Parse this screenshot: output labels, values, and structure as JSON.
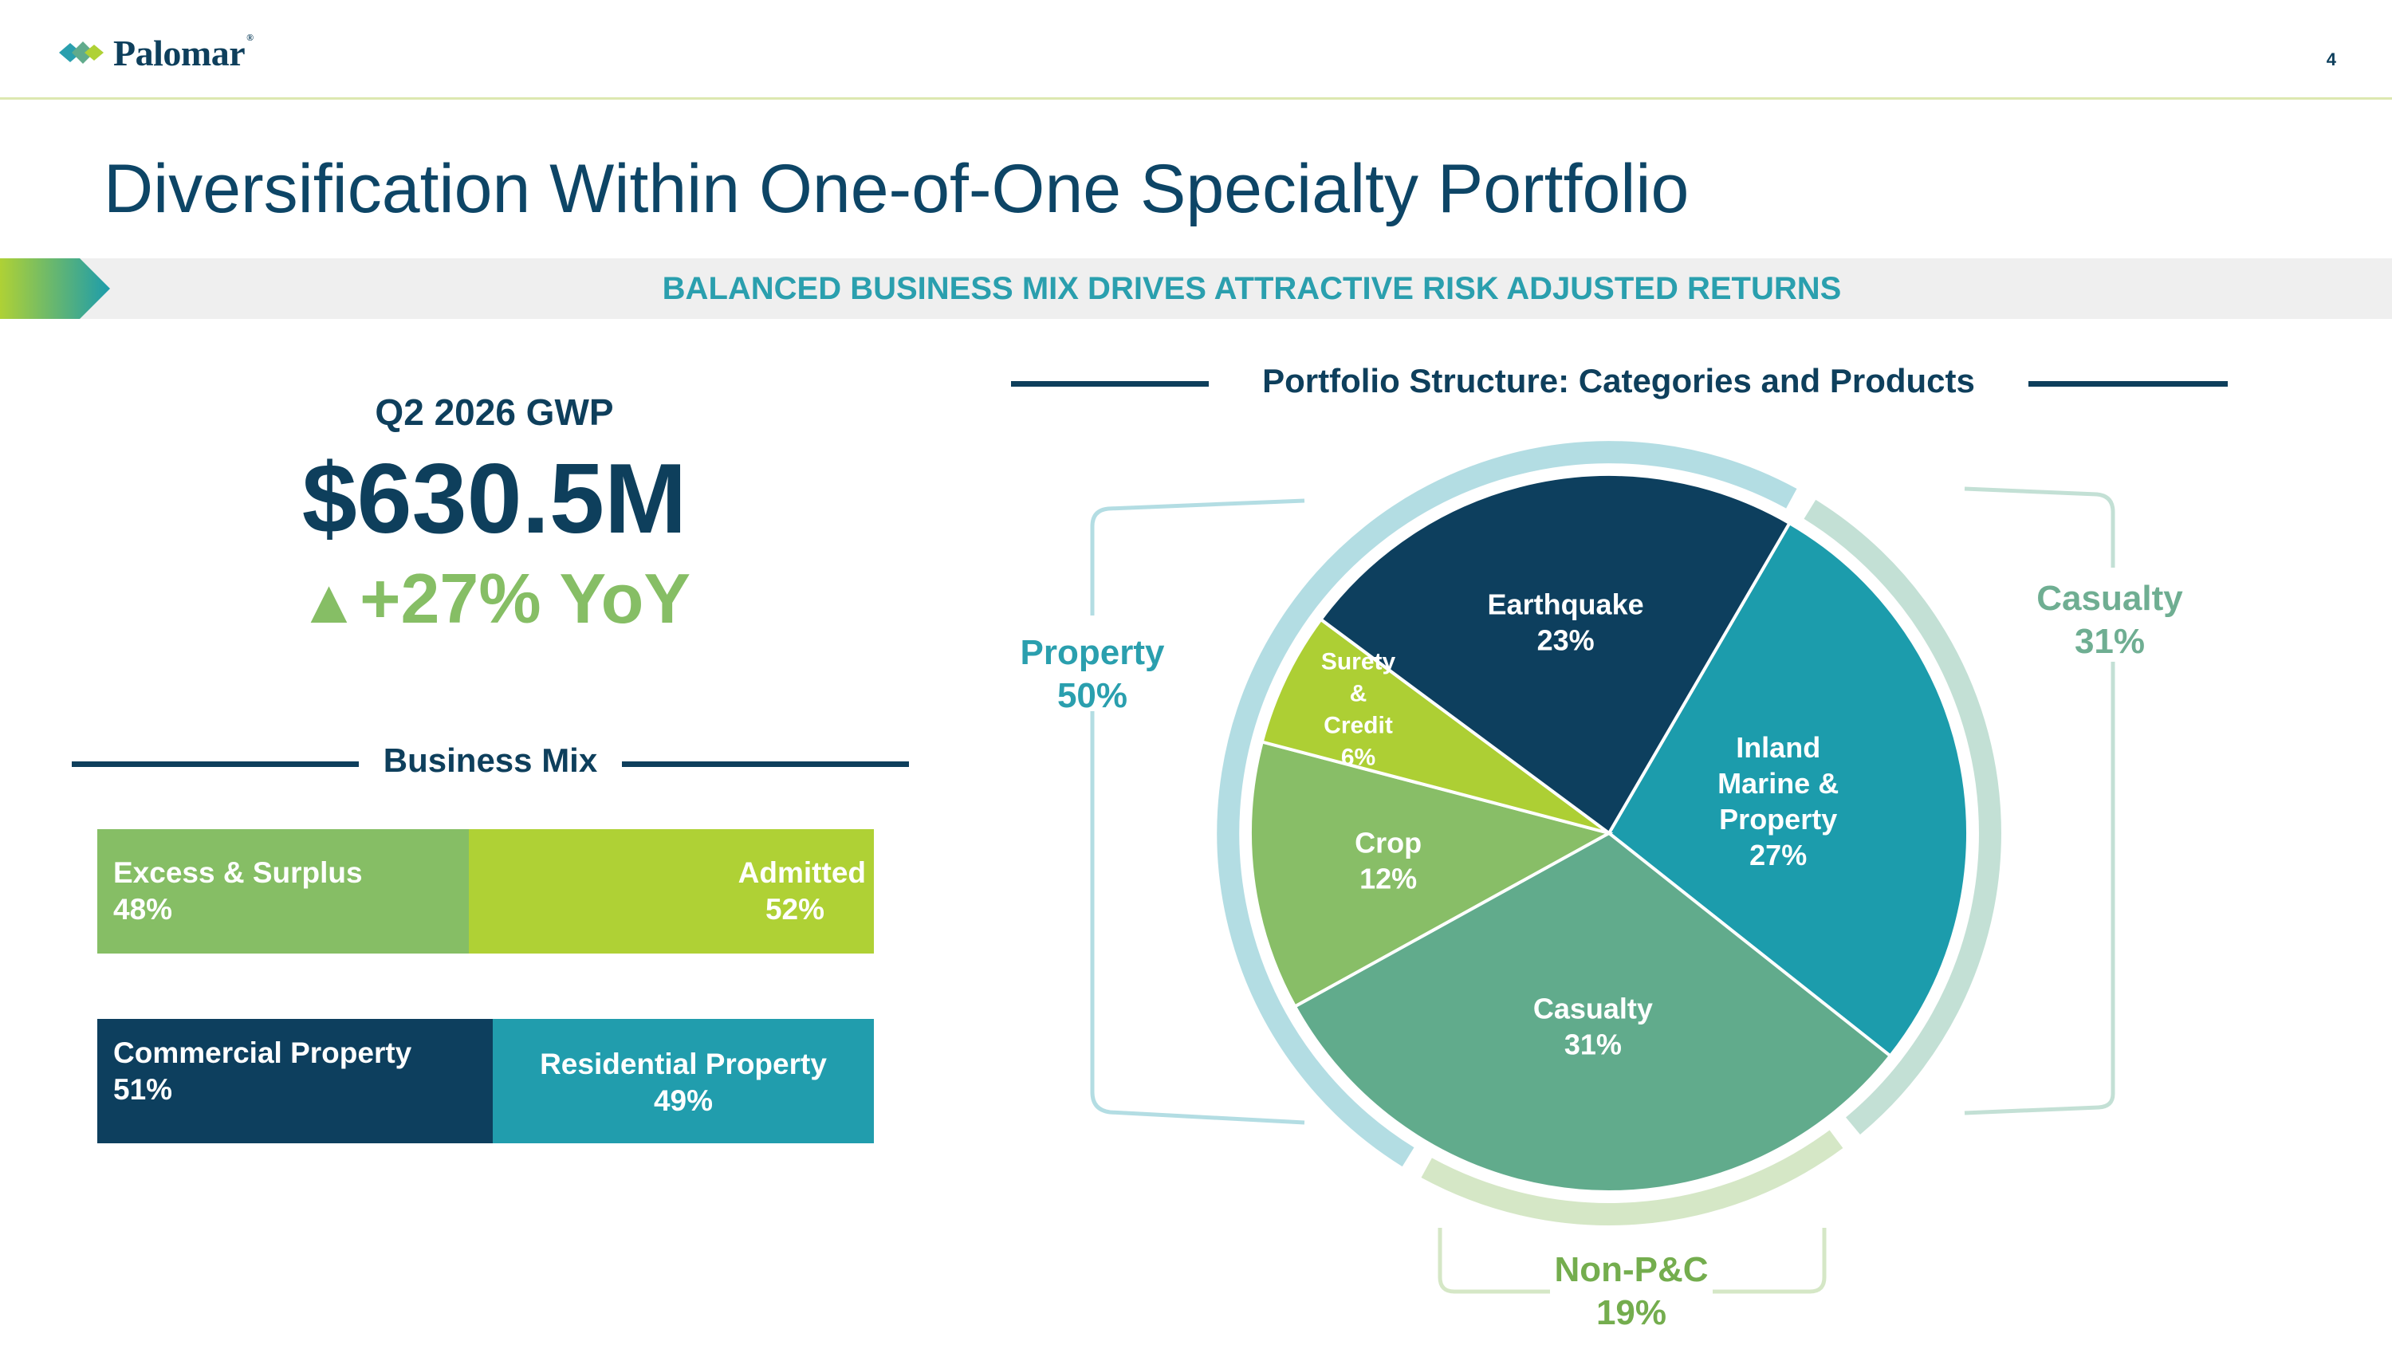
{
  "header": {
    "brand": "Palomar",
    "page_number": "4"
  },
  "title": "Diversification Within One-of-One Specialty Portfolio",
  "banner": {
    "text": "BALANCED BUSINESS MIX DRIVES ATTRACTIVE RISK ADJUSTED RETURNS"
  },
  "gwp": {
    "label": "Q2 2026 GWP",
    "value": "$630.5M",
    "growth": "+27% YoY",
    "growth_direction": "up"
  },
  "business_mix": {
    "heading": "Business Mix",
    "bars": [
      {
        "segments": [
          {
            "name": "Excess & Surplus",
            "pct": "48%",
            "value": 48,
            "color": "#86be65"
          },
          {
            "name": "Admitted",
            "pct": "52%",
            "value": 52,
            "color": "#afd135"
          }
        ]
      },
      {
        "segments": [
          {
            "name": "Commercial Property",
            "pct": "51%",
            "value": 51,
            "color": "#0d3f5e"
          },
          {
            "name": "Residential Property",
            "pct": "49%",
            "value": 49,
            "color": "#219dad"
          }
        ]
      }
    ]
  },
  "portfolio": {
    "heading": "Portfolio Structure: Categories and Products"
  },
  "chart_data": {
    "type": "pie",
    "title": "Portfolio Structure: Categories and Products",
    "slices": [
      {
        "label": "Inland Marine & Property",
        "lines": [
          "Inland",
          "Marine &",
          "Property"
        ],
        "pct_text": "27%",
        "value": 27,
        "color": "#1c9cac"
      },
      {
        "label": "Casualty",
        "lines": [
          "Casualty"
        ],
        "pct_text": "31%",
        "value": 31,
        "color": "#61ab8c"
      },
      {
        "label": "Crop",
        "lines": [
          "Crop"
        ],
        "pct_text": "12%",
        "value": 12,
        "color": "#88be67"
      },
      {
        "label": "Surety & Credit",
        "lines": [
          "Surety",
          "&",
          "Credit"
        ],
        "pct_text": "6%",
        "value": 6,
        "color": "#adcf34"
      },
      {
        "label": "Earthquake",
        "lines": [
          "Earthquake"
        ],
        "pct_text": "23%",
        "value": 23,
        "color": "#0d3f5e"
      }
    ],
    "categories": [
      {
        "name": "Property",
        "pct_text": "50%",
        "value": 50,
        "color": "#2a9fae",
        "ring_color": "#b3dde3"
      },
      {
        "name": "Casualty",
        "pct_text": "31%",
        "value": 31,
        "color": "#6fae92",
        "ring_color": "#c3e0d5"
      },
      {
        "name": "Non-P&C",
        "pct_text": "19%",
        "value": 19,
        "color": "#74ad4e",
        "ring_color": "#d5e7c6"
      }
    ]
  }
}
